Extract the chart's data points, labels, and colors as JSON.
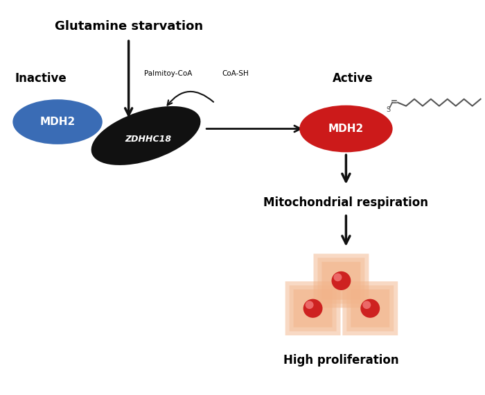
{
  "bg_color": "#ffffff",
  "glutamine_text": "Glutamine starvation",
  "inactive_text": "Inactive",
  "active_text": "Active",
  "mdh2_blue_color": "#3a6cb5",
  "mdh2_red_color": "#cc1a1a",
  "zdhhc18_color": "#111111",
  "mdh2_text_color": "#ffffff",
  "zdhhc18_text_color": "#ffffff",
  "palmitoy_coa_text": "Palmitoy-CoA",
  "coa_sh_text": "CoA-SH",
  "mito_resp_text": "Mitochondrial respiration",
  "high_prolif_text": "High proliferation",
  "cell_outer_color": "#f2b48a",
  "cell_nucleus_color": "#cc1a1a",
  "arrow_color": "#111111"
}
